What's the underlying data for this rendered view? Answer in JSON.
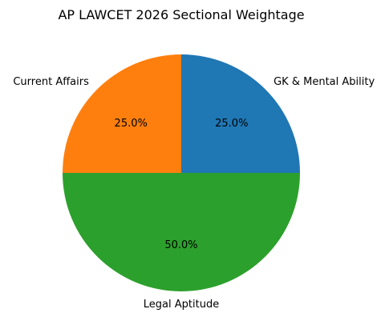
{
  "chart_data": {
    "type": "pie",
    "title": "AP LAWCET 2026 Sectional Weightage",
    "categories": [
      "GK & Mental Ability",
      "Current Affairs",
      "Legal Aptitude"
    ],
    "values": [
      25.0,
      25.0,
      50.0
    ],
    "value_labels": [
      "25.0%",
      "25.0%",
      "50.0%"
    ],
    "colors": [
      "#1f77b4",
      "#ff7f0e",
      "#2ca02c"
    ],
    "start_angle_deg": 0,
    "direction": "counterclockwise"
  }
}
